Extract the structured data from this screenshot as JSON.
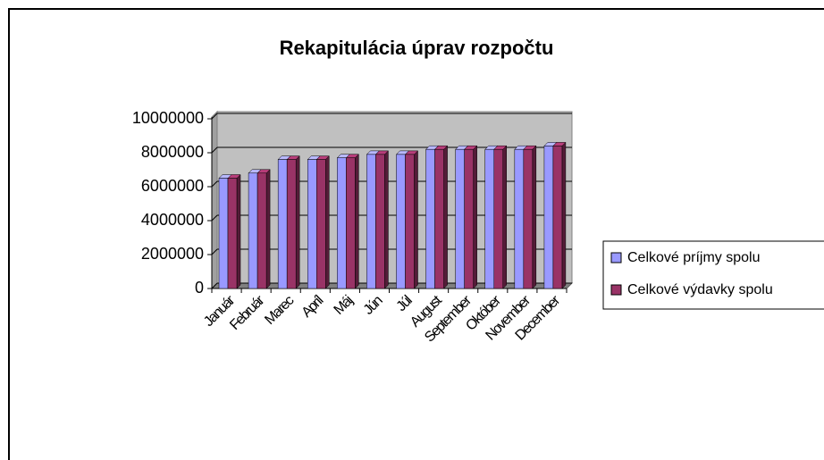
{
  "chart_data": {
    "type": "bar",
    "title": "Rekapitulácia úprav rozpočtu",
    "categories": [
      "Január",
      "Február",
      "Marec",
      "Apríl",
      "Máj",
      "Jún",
      "Júl",
      "August",
      "September",
      "Október",
      "November",
      "December"
    ],
    "series": [
      {
        "name": "Celkové príjmy spolu",
        "color": "#9999ff",
        "values": [
          6500000,
          6800000,
          7600000,
          7600000,
          7700000,
          7900000,
          7900000,
          8200000,
          8200000,
          8200000,
          8200000,
          8400000
        ]
      },
      {
        "name": "Celkové výdavky spolu",
        "color": "#993366",
        "values": [
          6500000,
          6800000,
          7600000,
          7600000,
          7700000,
          7900000,
          7900000,
          8200000,
          8200000,
          8200000,
          8200000,
          8400000
        ]
      }
    ],
    "ylim": [
      0,
      10000000
    ],
    "yticks": [
      0,
      2000000,
      4000000,
      6000000,
      8000000,
      10000000
    ],
    "grid": true,
    "legend": "right"
  }
}
